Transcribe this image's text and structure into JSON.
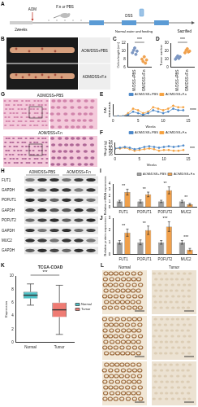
{
  "panels": {
    "A": {
      "label": "A",
      "texts": {
        "duration": "2weeks",
        "aom": "AOM",
        "treatment": "F.n or PBS",
        "dss": "DSS",
        "recovery": "Normal water and feeding",
        "end": "Sacrified"
      }
    },
    "B": {
      "label": "B",
      "groups": [
        "AOM/DSS+PBS",
        "AOM/DSS+F.n"
      ]
    },
    "G": {
      "label": "G",
      "groups": [
        "AOM/DSS+PBS",
        "AOM/DSS+F.n"
      ]
    },
    "H": {
      "label": "H",
      "groups": [
        "AOM/DSS+PBS",
        "AOM/DSS+F.n"
      ],
      "rows": [
        "FUT1",
        "GAPDH",
        "POFUT1",
        "GAPDH",
        "POFUT2",
        "GAPDH",
        "MUC2",
        "GAPDH"
      ]
    },
    "L": {
      "label": "L",
      "columns": [
        "Normal",
        "Tumor"
      ]
    }
  },
  "chart_data": [
    {
      "panel_label": "C",
      "type": "dot",
      "categories": [
        "AOM/DSS+PBS",
        "AOM/DSS+F.n"
      ],
      "groups": [
        {
          "color": "#7b96c2",
          "values": [
            9.6,
            10.2,
            10.8,
            9.2,
            10.0
          ]
        },
        {
          "color": "#f0a04b",
          "values": [
            8.0,
            7.4,
            8.6,
            7.0,
            7.8
          ]
        }
      ],
      "y_label": "Colon length (cm)",
      "ylim": [
        6,
        12
      ],
      "yticks": [
        6,
        8,
        10,
        12
      ],
      "grid": false,
      "marker": "circle",
      "annotations": [
        {
          "text": "***"
        }
      ]
    },
    {
      "panel_label": "D",
      "type": "dot",
      "categories": [
        "AOM/DSS+PBS",
        "AOM/DSS+F.n"
      ],
      "groups": [
        {
          "color": "#7b96c2",
          "values": [
            10,
            12,
            14,
            11,
            13
          ]
        },
        {
          "color": "#f0a04b",
          "values": [
            18,
            21,
            23,
            19,
            20
          ]
        }
      ],
      "y_label": "Tumor number",
      "ylim": [
        0,
        30
      ],
      "yticks": [
        0,
        10,
        20,
        30
      ],
      "grid": false,
      "marker": "circle",
      "annotations": [
        {
          "text": "***"
        }
      ]
    },
    {
      "panel_label": "E",
      "type": "line",
      "x": [
        0,
        1,
        2,
        3,
        4,
        5,
        6,
        7,
        8,
        9,
        10,
        11,
        12,
        13,
        14
      ],
      "series": [
        {
          "name": "AOM/DSS+PBS",
          "color": "#4a86c8",
          "values": [
            0,
            0,
            0,
            0.5,
            1.5,
            1,
            0.5,
            1,
            2,
            1.5,
            1,
            1.5,
            2.5,
            2,
            2
          ]
        },
        {
          "name": "AOM/DSS+F.n",
          "color": "#f5a03c",
          "values": [
            0,
            0,
            0,
            1,
            2.5,
            2,
            1,
            1.5,
            3,
            2.5,
            2,
            2.5,
            3.5,
            3,
            3
          ]
        }
      ],
      "x_label": "Weeks",
      "y_label": "DAI",
      "xlim": [
        0,
        15
      ],
      "xticks": [
        0,
        5,
        10,
        15
      ],
      "ylim": [
        0,
        4
      ],
      "yticks": [
        0,
        1,
        2,
        3,
        4
      ],
      "legend": "upper right",
      "grid": false,
      "marker": "circle",
      "annotations": [
        {
          "text": "****"
        }
      ]
    },
    {
      "panel_label": "F",
      "type": "line",
      "x": [
        0,
        1,
        2,
        3,
        4,
        5,
        6,
        7,
        8,
        9,
        10,
        11,
        12,
        13,
        14
      ],
      "series": [
        {
          "name": "AOM/DSS+PBS",
          "color": "#4a86c8",
          "values": [
            20,
            20.5,
            21,
            20.5,
            19.5,
            20,
            21,
            21.5,
            21,
            20.5,
            21,
            21.5,
            21,
            21.5,
            22
          ]
        },
        {
          "name": "AOM/DSS+F.n",
          "color": "#f5a03c",
          "values": [
            20,
            20,
            20.5,
            19.5,
            18.5,
            19,
            19.5,
            20,
            19.5,
            18.5,
            19,
            19,
            18.5,
            18.5,
            19
          ]
        }
      ],
      "x_label": "Weeks",
      "y_label": "Weight (g)",
      "xlim": [
        0,
        15
      ],
      "xticks": [
        0,
        5,
        10,
        15
      ],
      "ylim": [
        16,
        24
      ],
      "yticks": [
        16,
        18,
        20,
        22,
        24
      ],
      "legend": "upper right",
      "grid": false,
      "marker": "circle",
      "annotations": [
        {
          "text": "***"
        }
      ]
    },
    {
      "panel_label": "I",
      "type": "bar",
      "categories": [
        "FUT1",
        "POFUT1",
        "POFUT2",
        "MUC2"
      ],
      "series": [
        {
          "name": "AOM/DSS+PBS",
          "color": "#9e9e9e",
          "values": [
            1,
            1,
            1,
            1
          ],
          "errors": [
            0.2,
            0.25,
            0.2,
            0.2
          ]
        },
        {
          "name": "AOM/DSS+F.n",
          "color": "#f0a04b",
          "values": [
            2.6,
            2.2,
            2.9,
            0.5
          ],
          "errors": [
            0.5,
            0.4,
            0.6,
            0.15
          ]
        }
      ],
      "y_label": "Relative mRNA expression",
      "ylim": [
        0,
        4
      ],
      "yticks": [
        0,
        1,
        2,
        3,
        4
      ],
      "legend": "upper right",
      "grid": false,
      "annotations": [
        {
          "text": "**",
          "category": "FUT1"
        },
        {
          "text": "**",
          "category": "POFUT1"
        },
        {
          "text": "**",
          "category": "POFUT2"
        },
        {
          "text": "**",
          "category": "MUC2"
        }
      ]
    },
    {
      "panel_label": "J",
      "type": "bar",
      "categories": [
        "FUT1",
        "POFUT1",
        "POFUT2",
        "MUC2"
      ],
      "series": [
        {
          "name": "AOM/DSS+PBS",
          "color": "#9e9e9e",
          "values": [
            1,
            1,
            1,
            1
          ],
          "errors": [
            0.15,
            0.2,
            0.15,
            0.15
          ]
        },
        {
          "name": "AOM/DSS+F.n",
          "color": "#f0a04b",
          "values": [
            1.8,
            2.0,
            2.3,
            0.4
          ],
          "errors": [
            0.3,
            0.35,
            0.4,
            0.1
          ]
        }
      ],
      "y_label": "Relative protein expression",
      "ylim": [
        0,
        3
      ],
      "yticks": [
        0,
        1,
        2,
        3
      ],
      "grid": false,
      "annotations": [
        {
          "text": "**",
          "category": "FUT1"
        },
        {
          "text": "**",
          "category": "POFUT1"
        },
        {
          "text": "***",
          "category": "POFUT2"
        },
        {
          "text": "***",
          "category": "MUC2"
        }
      ]
    },
    {
      "panel_label": "K",
      "type": "box",
      "title": "TCGA-COAD",
      "categories": [
        "Normal",
        "Tumor"
      ],
      "series": [
        {
          "name": "Normal",
          "color": "#4fc1c6",
          "box": {
            "min": 5.6,
            "q1": 6.6,
            "median": 7.1,
            "q3": 7.6,
            "max": 8.8
          }
        },
        {
          "name": "Tumor",
          "color": "#ef7b73",
          "box": {
            "min": 1.2,
            "q1": 3.8,
            "median": 4.9,
            "q3": 6.0,
            "max": 8.6
          }
        }
      ],
      "y_label": "Expression",
      "ylim": [
        0,
        10
      ],
      "yticks": [
        0,
        2,
        4,
        6,
        8,
        10
      ],
      "legend": "right",
      "grid": false,
      "annotations": [
        {
          "text": "***"
        }
      ]
    }
  ]
}
